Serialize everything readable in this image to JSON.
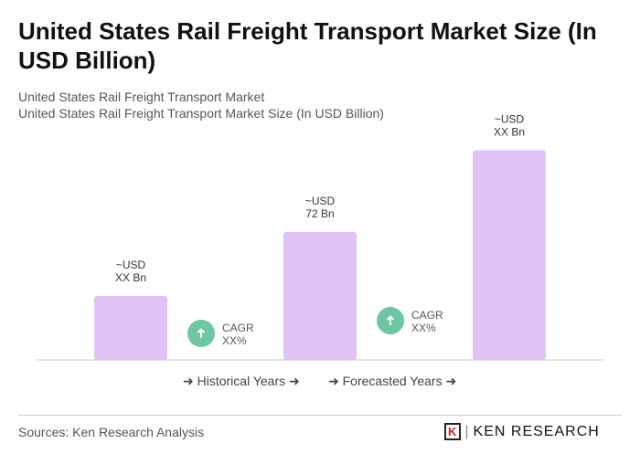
{
  "title": "United States Rail Freight Transport Market Size (In USD Billion)",
  "subtitle1": "United States Rail Freight Transport Market",
  "subtitle2": "United States Rail Freight Transport Market Size (In USD Billion)",
  "chart_data": {
    "type": "bar",
    "categories": [
      "",
      "",
      ""
    ],
    "values": [
      36,
      72,
      118
    ],
    "value_labels": [
      "~USD\nXX Bn",
      "~USD\n72 Bn",
      "~USD\nXX Bn"
    ],
    "cagr": [
      {
        "label": "CAGR",
        "value": "XX%"
      },
      {
        "label": "CAGR",
        "value": "XX%"
      }
    ],
    "legend": [
      "Historical Years",
      "Forecasted Years"
    ],
    "bar_color": "#dfc3f7",
    "cagr_color": "#6ec6a4"
  },
  "sources": "Sources: Ken Research Analysis",
  "logo": "KEN RESEARCH"
}
